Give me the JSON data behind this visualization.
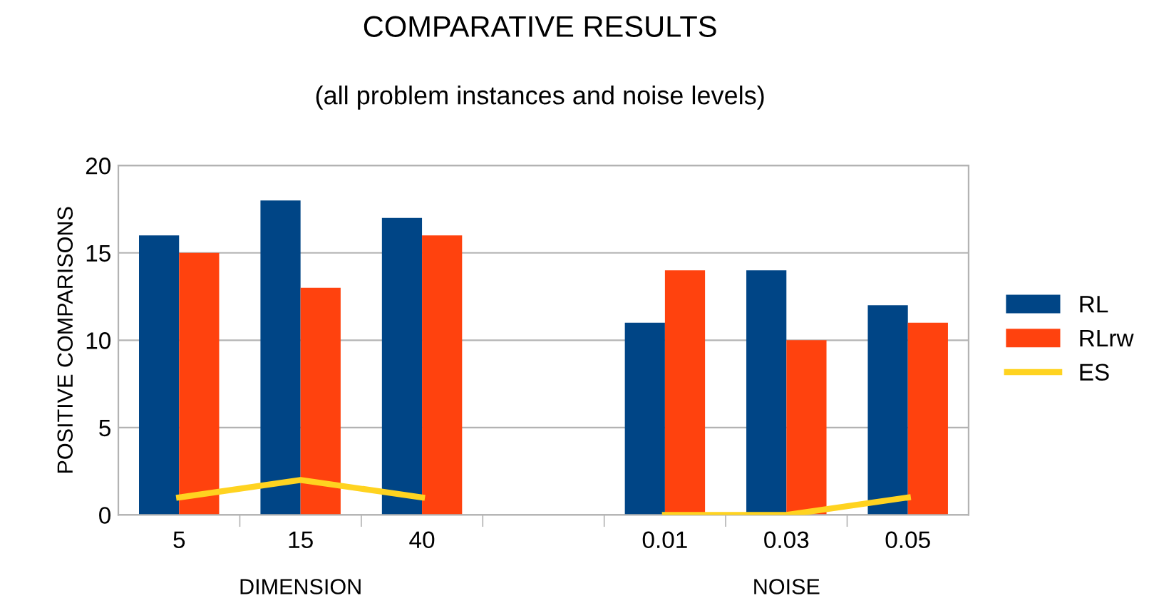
{
  "chart_data": {
    "type": "bar",
    "title": "COMPARATIVE RESULTS",
    "subtitle": "(all problem instances and noise levels)",
    "ylabel": "POSITIVE COMPARISONS",
    "categories": [
      "5",
      "15",
      "40",
      null,
      "0.01",
      "0.03",
      "0.05"
    ],
    "series": [
      {
        "name": "RL",
        "color": "#004586",
        "values": [
          16,
          18,
          17,
          null,
          11,
          14,
          12
        ]
      },
      {
        "name": "RLrw",
        "color": "#ff420e",
        "values": [
          15,
          13,
          16,
          null,
          14,
          10,
          11
        ]
      },
      {
        "name": "ES",
        "type": "line",
        "color": "#ffd320",
        "values": [
          1,
          2,
          1,
          null,
          0,
          0,
          1
        ]
      }
    ],
    "annotations": [
      "DIMENSION",
      "NOISE"
    ],
    "ylim": [
      0,
      20
    ],
    "yticks": [
      0,
      5,
      10,
      15,
      20
    ],
    "grid": "y",
    "legend": "right",
    "marker": "none"
  }
}
